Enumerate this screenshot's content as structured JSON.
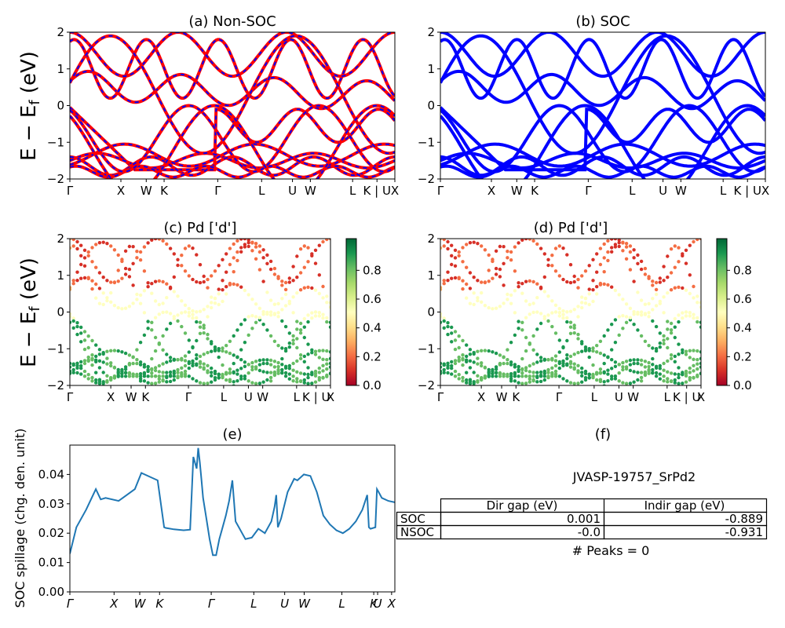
{
  "figure_title": "JVASP-19757_SrPd2",
  "peaks_text": "# Peaks = 0",
  "colors": {
    "nonsoc_line": "#ff0000",
    "nonsoc_dash": "#0000ff",
    "soc_line": "#0000ff",
    "spillage_line": "#1f77b4"
  },
  "colorbar": {
    "cmap": "RdYlGn",
    "ticks": [
      "0.0",
      "0.2",
      "0.4",
      "0.6",
      "0.8"
    ]
  },
  "chart_data": [
    {
      "id": "a",
      "type": "line",
      "title": "(a) Non-SOC",
      "ylabel": "E − E_f (eV)",
      "ylim": [
        -2,
        2
      ],
      "yticks": [
        "−2",
        "−1",
        "0",
        "1",
        "2"
      ],
      "kpath_labels": [
        "Γ",
        "X",
        "W",
        "K",
        "Γ",
        "L",
        "U",
        "W",
        "L",
        "K | U",
        "X"
      ],
      "kpath_positions": [
        0,
        0.157,
        0.235,
        0.29,
        0.455,
        0.59,
        0.685,
        0.74,
        0.87,
        0.945,
        1.0
      ],
      "note": "red bands (spin up) overlaid with blue dashed bands (spin down)"
    },
    {
      "id": "b",
      "type": "line",
      "title": "(b) SOC",
      "ylim": [
        -2,
        2
      ],
      "yticks": [
        "−2",
        "−1",
        "0",
        "1",
        "2"
      ],
      "kpath_labels": [
        "Γ",
        "X",
        "W",
        "K",
        "Γ",
        "L",
        "U",
        "W",
        "L",
        "K | U",
        "X"
      ],
      "kpath_positions": [
        0,
        0.157,
        0.235,
        0.29,
        0.455,
        0.59,
        0.685,
        0.74,
        0.87,
        0.945,
        1.0
      ]
    },
    {
      "id": "c",
      "type": "scatter",
      "title": "(c)  Pd ['d']",
      "ylabel": "E − E_f (eV)",
      "ylim": [
        -2,
        2
      ],
      "yticks": [
        "−2",
        "−1",
        "0",
        "1",
        "2"
      ],
      "kpath_labels": [
        "Γ",
        "X",
        "W",
        "K",
        "Γ",
        "L",
        "U",
        "W",
        "L",
        "K | U",
        "X"
      ],
      "kpath_positions": [
        0,
        0.157,
        0.235,
        0.29,
        0.455,
        0.59,
        0.685,
        0.74,
        0.87,
        0.945,
        1.0
      ]
    },
    {
      "id": "d",
      "type": "scatter",
      "title": "(d) Pd ['d']",
      "ylim": [
        -2,
        2
      ],
      "yticks": [
        "−2",
        "−1",
        "0",
        "1",
        "2"
      ],
      "kpath_labels": [
        "Γ",
        "X",
        "W",
        "K",
        "Γ",
        "L",
        "U",
        "W",
        "L",
        "K | U",
        "X"
      ],
      "kpath_positions": [
        0,
        0.157,
        0.235,
        0.29,
        0.455,
        0.59,
        0.685,
        0.74,
        0.87,
        0.945,
        1.0
      ]
    },
    {
      "id": "e",
      "type": "line",
      "title": "(e)",
      "ylabel": "SOC spillage (chg. den. unit)",
      "ylim": [
        0,
        0.05
      ],
      "yticks": [
        "0.00",
        "0.01",
        "0.02",
        "0.03",
        "0.04"
      ],
      "kpath_labels": [
        "Γ",
        "X",
        "W",
        "K",
        "Γ",
        "L",
        "U",
        "W",
        "L",
        "K",
        "U",
        "X"
      ],
      "kpath_positions": [
        0,
        0.136,
        0.215,
        0.276,
        0.435,
        0.566,
        0.661,
        0.721,
        0.837,
        0.935,
        0.947,
        0.99
      ],
      "x": [
        0,
        0.02,
        0.05,
        0.08,
        0.095,
        0.11,
        0.15,
        0.2,
        0.22,
        0.25,
        0.27,
        0.29,
        0.295,
        0.32,
        0.35,
        0.37,
        0.38,
        0.39,
        0.395,
        0.4,
        0.405,
        0.41,
        0.42,
        0.43,
        0.44,
        0.45,
        0.46,
        0.47,
        0.48,
        0.49,
        0.5,
        0.51,
        0.52,
        0.53,
        0.54,
        0.56,
        0.58,
        0.6,
        0.62,
        0.63,
        0.635,
        0.64,
        0.65,
        0.67,
        0.69,
        0.7,
        0.72,
        0.74,
        0.76,
        0.78,
        0.8,
        0.82,
        0.84,
        0.86,
        0.88,
        0.9,
        0.915,
        0.92,
        0.925,
        0.94,
        0.945,
        0.95,
        0.96,
        0.98,
        1.0
      ],
      "y": [
        0.013,
        0.022,
        0.028,
        0.035,
        0.0315,
        0.032,
        0.031,
        0.035,
        0.0405,
        0.039,
        0.038,
        0.022,
        0.0218,
        0.0213,
        0.021,
        0.0212,
        0.046,
        0.042,
        0.049,
        0.044,
        0.038,
        0.032,
        0.025,
        0.018,
        0.0125,
        0.0125,
        0.018,
        0.022,
        0.026,
        0.031,
        0.038,
        0.024,
        0.022,
        0.02,
        0.018,
        0.0185,
        0.0215,
        0.02,
        0.024,
        0.029,
        0.033,
        0.022,
        0.025,
        0.034,
        0.0385,
        0.038,
        0.04,
        0.0395,
        0.034,
        0.026,
        0.023,
        0.021,
        0.02,
        0.0215,
        0.024,
        0.028,
        0.033,
        0.022,
        0.0215,
        0.022,
        0.035,
        0.034,
        0.032,
        0.031,
        0.0305
      ]
    }
  ],
  "table": {
    "title": "(f)",
    "headers": [
      "Dir gap (eV)",
      "Indir gap (eV)"
    ],
    "rows": [
      {
        "label": "SOC",
        "dir": "0.001",
        "indir": "-0.889"
      },
      {
        "label": "NSOC",
        "dir": "-0.0",
        "indir": "-0.931"
      }
    ]
  }
}
